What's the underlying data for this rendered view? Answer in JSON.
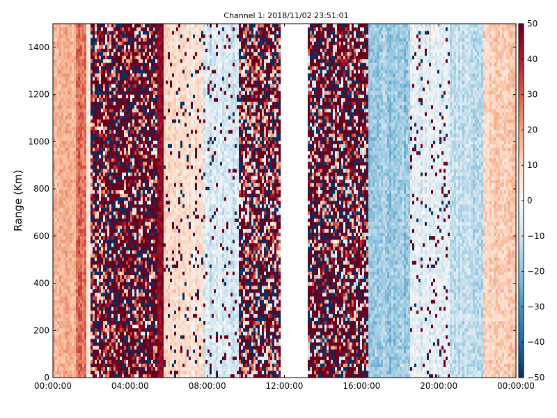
{
  "chart_data": {
    "type": "heatmap",
    "title": "Channel 1: 2018/11/02 23:51:01",
    "xlabel": "",
    "ylabel": "Range (Km)",
    "x_tick_labels": [
      "00:00:00",
      "04:00:00",
      "08:00:00",
      "12:00:00",
      "16:00:00",
      "20:00:00",
      "00:00:00"
    ],
    "x_tick_hours": [
      0,
      4,
      8,
      12,
      16,
      20,
      24
    ],
    "xlim_hours": [
      0,
      24
    ],
    "y_ticks": [
      0,
      200,
      400,
      600,
      800,
      1000,
      1200,
      1400
    ],
    "y_tick_labels": [
      "0",
      "200",
      "400",
      "600",
      "800",
      "1000",
      "1200",
      "1400"
    ],
    "ylim": [
      0,
      1500
    ],
    "colorbar": {
      "min": -50,
      "max": 50,
      "ticks": [
        50,
        40,
        30,
        20,
        10,
        0,
        -10,
        -20,
        -30,
        -40,
        -50
      ],
      "tick_labels": [
        "50",
        "40",
        "30",
        "20",
        "10",
        "0",
        "−10",
        "−20",
        "−30",
        "−40",
        "−50"
      ],
      "colormap": "RdBu_r"
    },
    "time_segments": [
      {
        "start_hour": 0.0,
        "end_hour": 1.2,
        "typical_value": 18,
        "variability": 10,
        "character": "smooth"
      },
      {
        "start_hour": 1.2,
        "end_hour": 1.7,
        "typical_value": 28,
        "variability": 12,
        "character": "smooth"
      },
      {
        "start_hour": 1.7,
        "end_hour": 2.0,
        "typical_value": 6,
        "variability": 10,
        "character": "smooth"
      },
      {
        "start_hour": 2.0,
        "end_hour": 3.0,
        "typical_value": 22,
        "variability": 45,
        "character": "noisy"
      },
      {
        "start_hour": 3.0,
        "end_hour": 5.4,
        "typical_value": 30,
        "variability": 70,
        "character": "noisy"
      },
      {
        "start_hour": 5.4,
        "end_hour": 5.7,
        "typical_value": 45,
        "variability": 10,
        "character": "smooth"
      },
      {
        "start_hour": 5.7,
        "end_hour": 7.8,
        "typical_value": 8,
        "variability": 12,
        "character": "speckled"
      },
      {
        "start_hour": 7.8,
        "end_hour": 9.6,
        "typical_value": -8,
        "variability": 14,
        "character": "speckled"
      },
      {
        "start_hour": 9.6,
        "end_hour": 11.8,
        "typical_value": 15,
        "variability": 55,
        "character": "noisy"
      },
      {
        "start_hour": 11.8,
        "end_hour": 13.2,
        "typical_value": null,
        "variability": 0,
        "character": "no data"
      },
      {
        "start_hour": 13.2,
        "end_hour": 16.3,
        "typical_value": 20,
        "variability": 75,
        "character": "noisy"
      },
      {
        "start_hour": 16.3,
        "end_hour": 18.5,
        "typical_value": -18,
        "variability": 12,
        "character": "smooth"
      },
      {
        "start_hour": 18.5,
        "end_hour": 20.5,
        "typical_value": -5,
        "variability": 14,
        "character": "speckled"
      },
      {
        "start_hour": 20.5,
        "end_hour": 22.3,
        "typical_value": -12,
        "variability": 12,
        "character": "smooth"
      },
      {
        "start_hour": 22.3,
        "end_hour": 24.0,
        "typical_value": 12,
        "variability": 12,
        "character": "smooth"
      }
    ],
    "grid": false,
    "legend": "colorbar at right"
  },
  "colors": {
    "colormap_stops": [
      "#053061",
      "#2166ac",
      "#4393c3",
      "#92c5de",
      "#d1e5f0",
      "#f7f7f7",
      "#fddbc7",
      "#f4a582",
      "#d6604d",
      "#b2182b",
      "#67001f"
    ]
  }
}
